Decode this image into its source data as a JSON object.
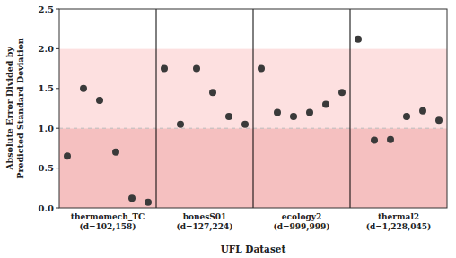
{
  "chart_data": {
    "type": "strip",
    "xlabel": "UFL Dataset",
    "ylabel": "Absolute Error Divided by\nPredicted Standard Deviation",
    "categories": [
      "thermomech_TC\n(d=102,158)",
      "bonesS01\n(d=127,224)",
      "ecology2\n(d=999,999)",
      "thermal2\n(d=1,228,045)"
    ],
    "values": [
      [
        0.65,
        1.5,
        1.35,
        0.7,
        0.12,
        0.07
      ],
      [
        1.75,
        1.05,
        1.75,
        1.45,
        1.15,
        1.05
      ],
      [
        1.75,
        1.2,
        1.15,
        1.2,
        1.3,
        1.45
      ],
      [
        2.12,
        0.85,
        0.86,
        1.15,
        1.22,
        1.1
      ]
    ],
    "color": "#3a3a3a",
    "ylim": [
      0,
      2.5
    ],
    "yticks": [
      {
        "value": 0.0,
        "label": "0.0"
      },
      0.5,
      {
        "value": 1.0,
        "label": "1.0"
      },
      1.5,
      {
        "value": 2.0,
        "label": "2.0"
      },
      2.5
    ],
    "reference_line": {
      "value": 1.0,
      "color": "#bbbbbb"
    },
    "bands": [
      {
        "from": 0,
        "to": 1.0,
        "color": "#f5c0c0"
      },
      {
        "from": 1.0,
        "to": 2.0,
        "color": "#fde0e0"
      },
      {
        "from": 2.0,
        "to": 2.5,
        "color": "#ffffff"
      }
    ]
  }
}
